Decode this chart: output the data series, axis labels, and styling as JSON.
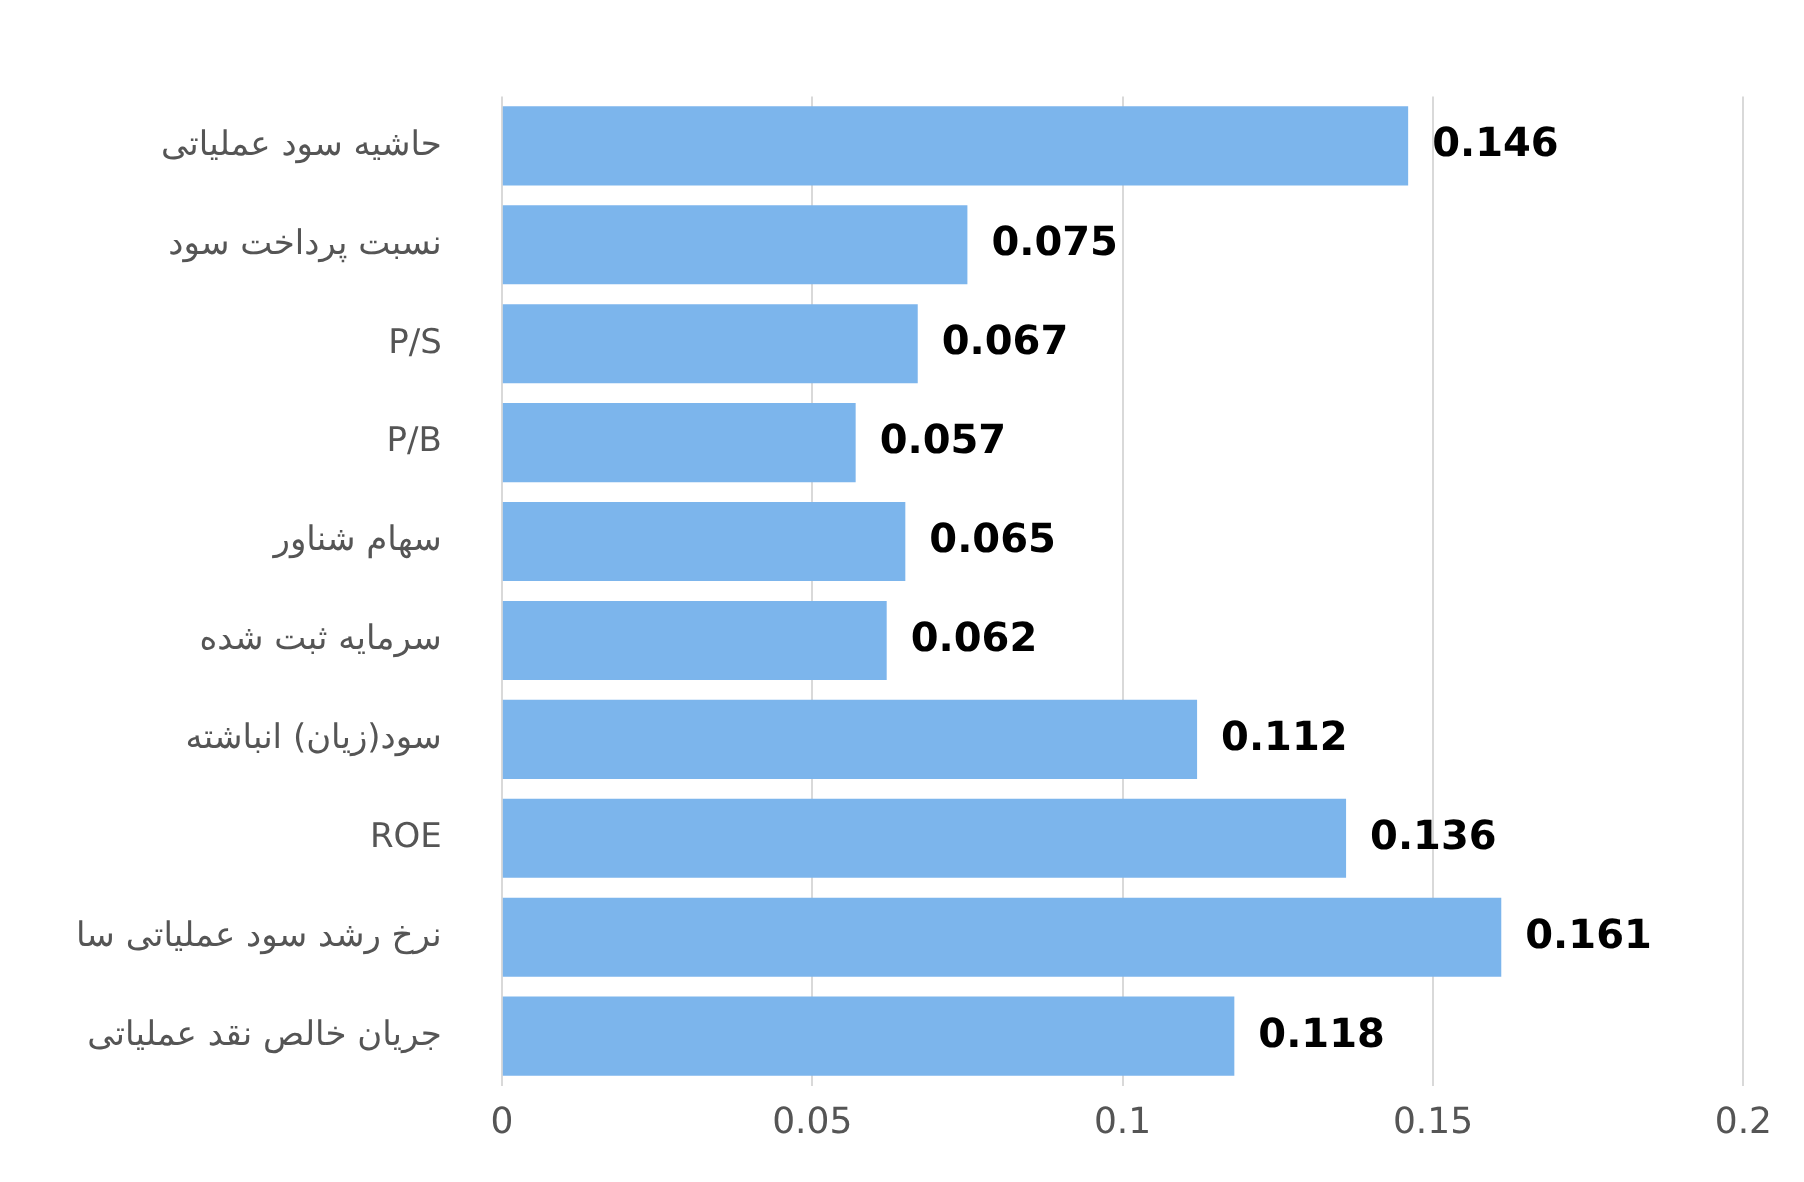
{
  "chart_data": {
    "type": "bar",
    "orientation": "horizontal",
    "categories": [
      "حاشیه سود عملیاتی",
      "نسبت پرداخت سود",
      "P/S",
      "P/B",
      "سهام شناور",
      "سرمایه ثبت شده",
      "سود(زیان) انباشته",
      "ROE",
      "نرخ رشد سود عملیاتی سا",
      "جریان خالص نقد عملیاتی"
    ],
    "values": [
      0.146,
      0.075,
      0.067,
      0.057,
      0.065,
      0.062,
      0.112,
      0.136,
      0.161,
      0.118
    ],
    "color": "#7cb5ec",
    "xlim": [
      0,
      0.2
    ],
    "xticks": [
      0,
      0.05,
      0.1,
      0.15,
      0.2
    ],
    "grid": "x",
    "data_labels": true
  }
}
